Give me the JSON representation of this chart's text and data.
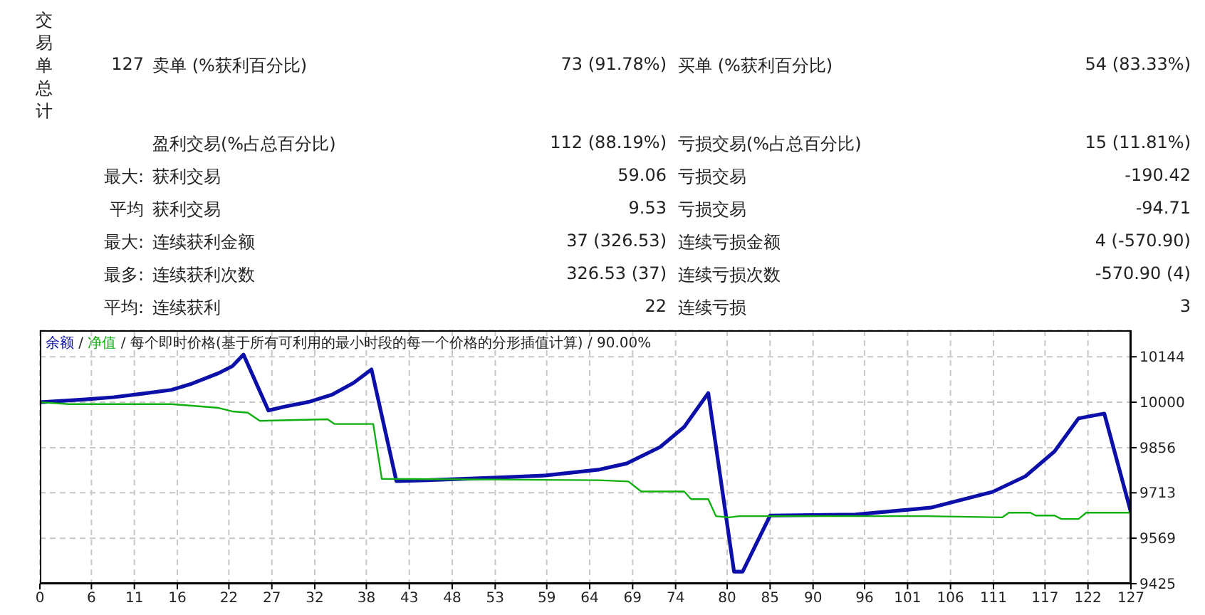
{
  "chart_data": [
    {
      "type": "other",
      "title": "交易单总计",
      "categories": [
        "127",
        null,
        "最大",
        "平均",
        "最大",
        "最多",
        "平均"
      ],
      "y_categories": [
        null,
        null,
        ":",
        null,
        ":",
        ":",
        ":"
      ],
      "annotations": [
        "卖单 (%获利百分比)",
        "73 (91.78%)",
        "买单 (%获利百分比)",
        "54 (83.33%)",
        "盈利交易(%占总百分比)",
        "112 (88.19%)",
        "亏损交易(%占总百分比)",
        "15 (11.81%)",
        "获利交易",
        "59.06",
        "亏损交易",
        "-190.42",
        "获利交易",
        "9.53",
        "亏损交易",
        "-94.71",
        "连续获利金额",
        "37 (326.53)",
        "连续亏损金额",
        "4 (-570.90)",
        "连续获利次数",
        "326.53 (37)",
        "连续亏损次数",
        "-570.90 (4)",
        "连续获利",
        "22",
        "连续亏损",
        "3"
      ]
    },
    {
      "type": "line",
      "title": "每个即时价格(基于所有可利用的最小时段的每一个价格的分形插值计算) / 90.00%",
      "xlim": [
        0,
        127
      ],
      "xticks": [
        0,
        6,
        11,
        16,
        22,
        27,
        32,
        38,
        43,
        48,
        53,
        59,
        64,
        69,
        74,
        80,
        85,
        90,
        96,
        101,
        106,
        111,
        117,
        122,
        127
      ],
      "ylim": [
        9425,
        10228
      ],
      "yticks": [
        9425,
        9569,
        9713,
        9856,
        10000,
        10144
      ],
      "grid": true,
      "legend": "top left",
      "annotations": [
        "/",
        "/"
      ],
      "series": [
        {
          "name": "余额",
          "color": "#0c10a8",
          "x": [
            0,
            5.3,
            8.6,
            11.9,
            15.3,
            17.5,
            20.8,
            22.4,
            23.7,
            26.6,
            28.5,
            31.3,
            34,
            36.5,
            38.6,
            41.5,
            45.1,
            52.8,
            58.9,
            65,
            68.3,
            72.2,
            75,
            77.8,
            80.8,
            81.8,
            85,
            94.9,
            103.7,
            110.9,
            114.7,
            118.1,
            120.9,
            123.9,
            127
          ],
          "values": [
            10000,
            10009,
            10016,
            10027,
            10039,
            10057,
            10092,
            10114,
            10151,
            9974,
            9986,
            10001,
            10024,
            10061,
            10104,
            9750,
            9753,
            9761,
            9768,
            9786,
            9806,
            9858,
            9922,
            10029,
            9463,
            9463,
            9641,
            9644,
            9666,
            9716,
            9765,
            9844,
            9949,
            9964,
            9651
          ]
        },
        {
          "name": "净值",
          "color": "#10b010",
          "x": [
            0,
            3.4,
            15.3,
            20.8,
            22.4,
            24.2,
            25.6,
            33.5,
            34.3,
            38.8,
            39.8,
            65,
            68.5,
            70,
            75,
            75.8,
            77.8,
            78.7,
            80.2,
            81.4,
            103.2,
            112,
            112.8,
            115.3,
            115.9,
            118.1,
            118.9,
            120.9,
            121.8,
            127
          ],
          "values": [
            10000,
            9994,
            9994,
            9982,
            9971,
            9967,
            9941,
            9946,
            9931,
            9931,
            9757,
            9753,
            9749,
            9717,
            9717,
            9693,
            9693,
            9639,
            9635,
            9639,
            9639,
            9635,
            9650,
            9650,
            9641,
            9641,
            9630,
            9630,
            9650,
            9650
          ]
        }
      ]
    }
  ]
}
